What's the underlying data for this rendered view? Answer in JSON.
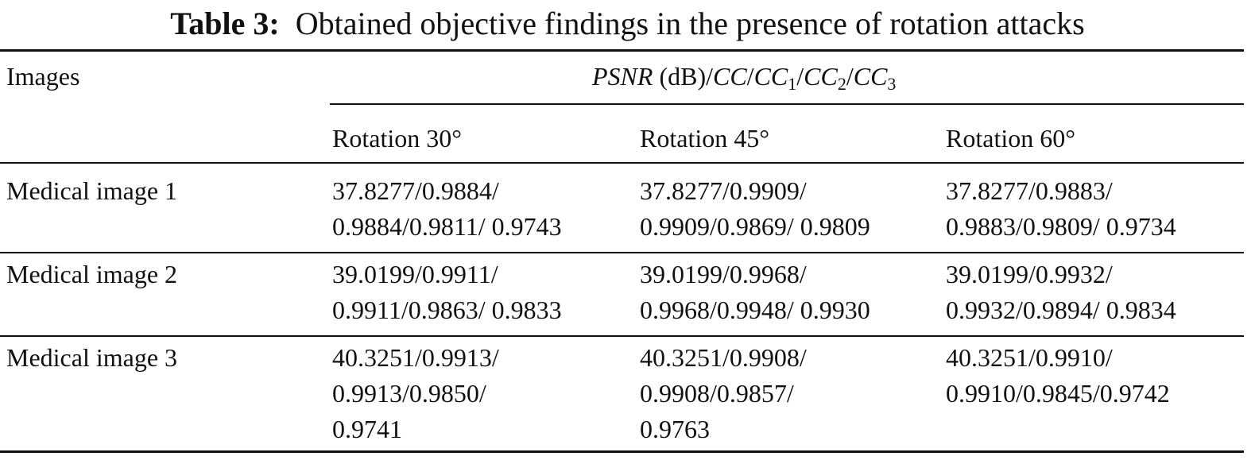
{
  "caption": {
    "label": "Table 3:",
    "text": "Obtained objective findings in the presence of rotation attacks"
  },
  "table": {
    "header": {
      "first": "Images",
      "group": [
        "PSNR",
        " (dB)/",
        "CC",
        "/",
        "CC",
        "1",
        "/",
        "CC",
        "2",
        "/",
        "CC",
        "3"
      ],
      "columns": [
        "Rotation 30°",
        "Rotation 45°",
        "Rotation 60°"
      ]
    },
    "rows": [
      {
        "name": "Medical image 1",
        "cells": [
          [
            "37.8277/0.9884/",
            "0.9884/0.9811/ 0.9743"
          ],
          [
            "37.8277/0.9909/",
            "0.9909/0.9869/ 0.9809"
          ],
          [
            "37.8277/0.9883/",
            "0.9883/0.9809/ 0.9734"
          ]
        ]
      },
      {
        "name": "Medical image 2",
        "cells": [
          [
            "39.0199/0.9911/",
            "0.9911/0.9863/ 0.9833"
          ],
          [
            "39.0199/0.9968/",
            "0.9968/0.9948/ 0.9930"
          ],
          [
            "39.0199/0.9932/",
            "0.9932/0.9894/ 0.9834"
          ]
        ]
      },
      {
        "name": "Medical image 3",
        "cells": [
          [
            "40.3251/0.9913/",
            "0.9913/0.9850/",
            "0.9741"
          ],
          [
            "40.3251/0.9908/",
            "0.9908/0.9857/",
            "0.9763"
          ],
          [
            "40.3251/0.9910/",
            "0.9910/0.9845/0.9742"
          ]
        ]
      }
    ]
  }
}
